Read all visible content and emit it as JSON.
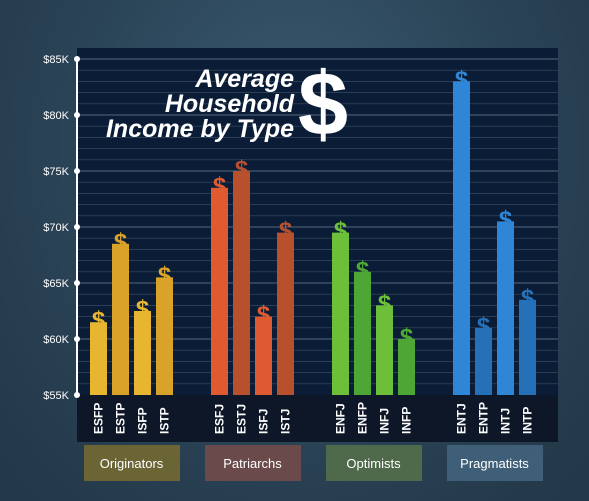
{
  "chart_data": {
    "type": "bar",
    "title": "Average Household Income by Type",
    "title_lines": [
      "Average",
      "Household",
      "Income by Type"
    ],
    "title_symbol": "$",
    "ylim": [
      55000,
      85000
    ],
    "y_ticks": [
      {
        "value": 55000,
        "label": "$55K"
      },
      {
        "value": 60000,
        "label": "$60K"
      },
      {
        "value": 65000,
        "label": "$65K"
      },
      {
        "value": 70000,
        "label": "$70K"
      },
      {
        "value": 75000,
        "label": "$75K"
      },
      {
        "value": 80000,
        "label": "$80K"
      },
      {
        "value": 85000,
        "label": "$85K"
      }
    ],
    "bar_marker": "$",
    "groups": [
      {
        "name": "Originators",
        "color": "#e8b530",
        "alt_color": "#d9a228",
        "box_color": "#6b6535",
        "categories": [
          "ESFP",
          "ESTP",
          "ISFP",
          "ISTP"
        ],
        "values": [
          61500,
          68500,
          62500,
          65500
        ]
      },
      {
        "name": "Patriarchs",
        "color": "#df5a30",
        "alt_color": "#b8502e",
        "box_color": "#6a4a4a",
        "categories": [
          "ESFJ",
          "ESTJ",
          "ISFJ",
          "ISTJ"
        ],
        "values": [
          73500,
          75000,
          62000,
          69500
        ]
      },
      {
        "name": "Optimists",
        "color": "#6dbf3a",
        "alt_color": "#4ea634",
        "box_color": "#4f6a4a",
        "categories": [
          "ENFJ",
          "ENFP",
          "INFJ",
          "INFP"
        ],
        "values": [
          69500,
          66000,
          63000,
          60000
        ]
      },
      {
        "name": "Pragmatists",
        "color": "#2f86d6",
        "alt_color": "#2670b8",
        "box_color": "#3f5f78",
        "categories": [
          "ENTJ",
          "ENTP",
          "INTJ",
          "INTP"
        ],
        "values": [
          83000,
          61000,
          70500,
          63500
        ]
      }
    ],
    "colors": {
      "plot_bg": "#0b1d36",
      "grid": "#5a6f86",
      "axis": "#ffffff",
      "label_panel": "#0d1728",
      "tick_text": "#ffffff"
    }
  }
}
